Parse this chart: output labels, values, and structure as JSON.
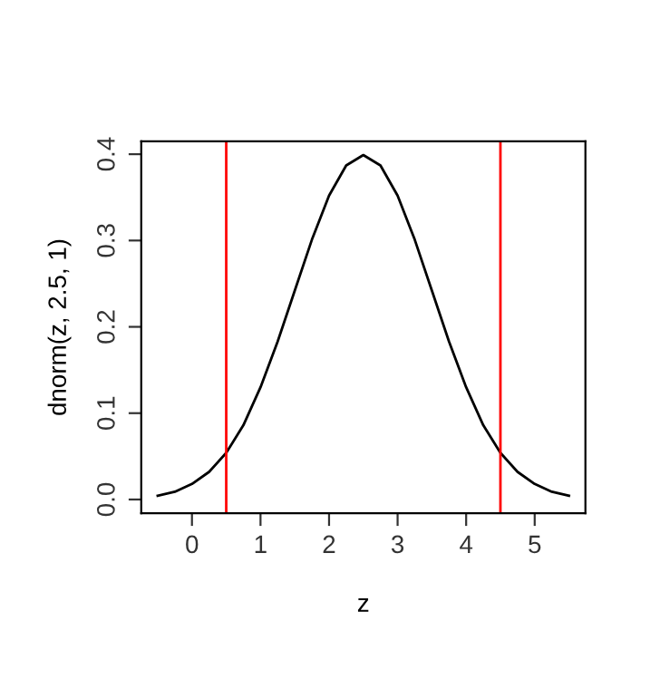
{
  "chart_data": {
    "type": "line",
    "xlabel": "z",
    "ylabel": "dnorm(z, 2.5, 1)",
    "x": [
      -0.5,
      -0.25,
      0,
      0.25,
      0.5,
      0.75,
      1,
      1.25,
      1.5,
      1.75,
      2,
      2.25,
      2.5,
      2.75,
      3,
      3.25,
      3.5,
      3.75,
      4,
      4.25,
      4.5,
      4.75,
      5,
      5.25,
      5.5
    ],
    "series": [
      {
        "color": "#000000",
        "values": [
          0.0044,
          0.009,
          0.018,
          0.032,
          0.054,
          0.086,
          0.13,
          0.183,
          0.242,
          0.301,
          0.352,
          0.387,
          0.399,
          0.387,
          0.352,
          0.301,
          0.242,
          0.183,
          0.13,
          0.086,
          0.054,
          0.032,
          0.018,
          0.009,
          0.0044
        ]
      }
    ],
    "xlim": [
      -0.74,
      5.74
    ],
    "ylim": [
      -0.016,
      0.415
    ],
    "xticks": [
      0,
      1,
      2,
      3,
      4,
      5
    ],
    "yticks": [
      {
        "value": 0,
        "label": "0.0"
      },
      0.1,
      0.2,
      0.3,
      0.4
    ],
    "ref_lines": [
      {
        "axis": "x",
        "value": 0.5,
        "color": "#ff0000"
      },
      {
        "axis": "x",
        "value": 4.5,
        "color": "#ff0000"
      }
    ],
    "grid": false,
    "legend": false,
    "marker": "none",
    "line_style": "solid"
  }
}
